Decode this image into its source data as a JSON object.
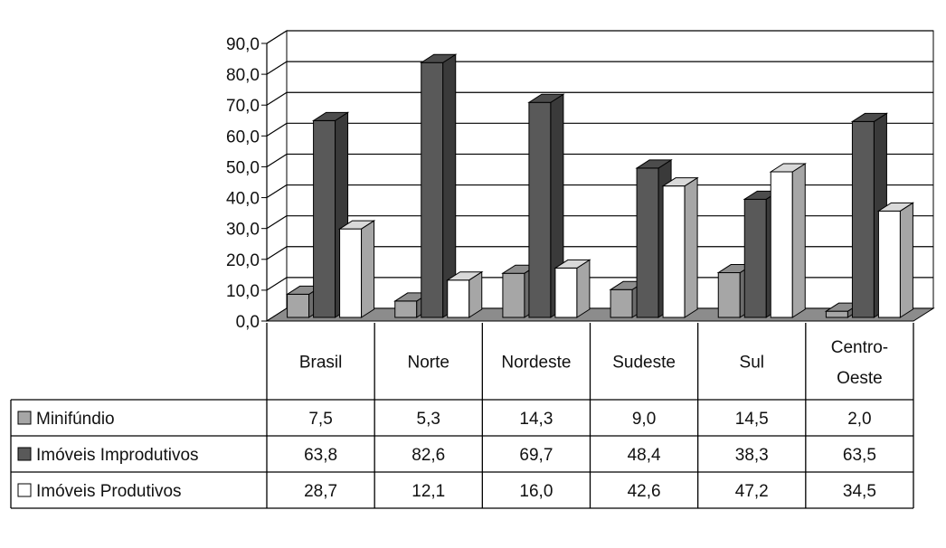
{
  "chart_data": {
    "type": "bar",
    "categories": [
      "Brasil",
      "Norte",
      "Nordeste",
      "Sudeste",
      "Sul",
      "Centro-Oeste"
    ],
    "category_display": [
      [
        "Brasil"
      ],
      [
        "Norte"
      ],
      [
        "Nordeste"
      ],
      [
        "Sudeste"
      ],
      [
        "Sul"
      ],
      [
        "Centro-",
        "Oeste"
      ]
    ],
    "series": [
      {
        "name": "Minifúndio",
        "values": [
          7.5,
          5.3,
          14.3,
          9.0,
          14.5,
          2.0
        ],
        "labels": [
          "7,5",
          "5,3",
          "14,3",
          "9,0",
          "14,5",
          "2,0"
        ]
      },
      {
        "name": "Imóveis Improdutivos",
        "values": [
          63.8,
          82.6,
          69.7,
          48.4,
          38.3,
          63.5
        ],
        "labels": [
          "63,8",
          "82,6",
          "69,7",
          "48,4",
          "38,3",
          "63,5"
        ]
      },
      {
        "name": "Imóveis Produtivos",
        "values": [
          28.7,
          12.1,
          16.0,
          42.6,
          47.2,
          34.5
        ],
        "labels": [
          "28,7",
          "12,1",
          "16,0",
          "42,6",
          "47,2",
          "34,5"
        ]
      }
    ],
    "ylim": [
      0,
      90
    ],
    "yticks": [
      "0,0",
      "10,0",
      "20,0",
      "30,0",
      "40,0",
      "50,0",
      "60,0",
      "70,0",
      "80,0",
      "90,0"
    ],
    "grid": true,
    "legend": "data-table"
  },
  "colors": {
    "series": [
      "#a6a6a6",
      "#595959",
      "#ffffff"
    ],
    "floor": "#8c8c8c",
    "wall": "#ffffff",
    "grid": "#000000"
  }
}
